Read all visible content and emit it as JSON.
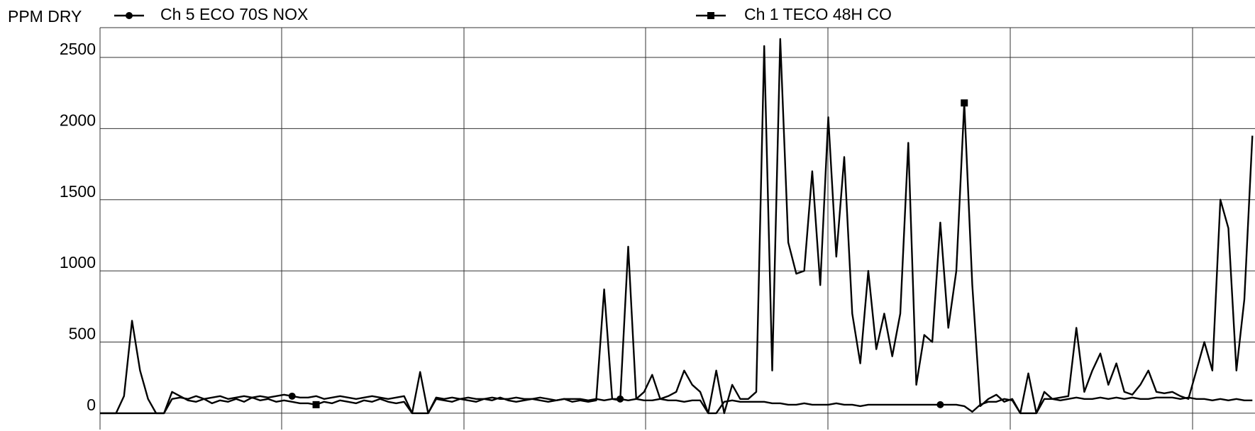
{
  "chart_data": {
    "type": "line",
    "ylabel": "PPM DRY",
    "ylim": [
      -115,
      2709
    ],
    "yticks": [
      0,
      500,
      1000,
      1500,
      2000,
      2500
    ],
    "grid": true,
    "series": [
      {
        "name": "Ch 5 ECO 70S NOX",
        "color": "#000000",
        "marker": "circle",
        "values": [
          0,
          0,
          0,
          0,
          0,
          0,
          0,
          0,
          0,
          100,
          110,
          100,
          120,
          100,
          110,
          120,
          100,
          110,
          120,
          110,
          120,
          110,
          120,
          130,
          120,
          110,
          110,
          120,
          100,
          110,
          120,
          110,
          100,
          110,
          120,
          110,
          100,
          110,
          120,
          0,
          0,
          0,
          110,
          100,
          110,
          100,
          110,
          100,
          100,
          110,
          100,
          100,
          110,
          100,
          100,
          110,
          100,
          90,
          100,
          100,
          100,
          90,
          100,
          90,
          100,
          100,
          90,
          100,
          90,
          90,
          100,
          90,
          90,
          80,
          90,
          90,
          0,
          0,
          80,
          90,
          80,
          80,
          80,
          80,
          70,
          70,
          60,
          60,
          70,
          60,
          60,
          60,
          70,
          60,
          60,
          50,
          60,
          60,
          60,
          60,
          60,
          60,
          60,
          60,
          60,
          60,
          60,
          60,
          50,
          10,
          60,
          80,
          80,
          100,
          90,
          0,
          0,
          0,
          100,
          100,
          90,
          100,
          110,
          100,
          100,
          110,
          100,
          110,
          100,
          110,
          100,
          100,
          110,
          110,
          110,
          100,
          110,
          100,
          100,
          90,
          100,
          90,
          100,
          90,
          90
        ]
      },
      {
        "name": "Ch 1 TECO 48H CO",
        "color": "#000000",
        "marker": "square",
        "values": [
          0,
          0,
          0,
          120,
          650,
          300,
          100,
          0,
          0,
          150,
          120,
          90,
          80,
          100,
          70,
          90,
          80,
          100,
          80,
          110,
          90,
          100,
          80,
          90,
          80,
          70,
          70,
          60,
          80,
          70,
          90,
          80,
          70,
          90,
          80,
          100,
          80,
          70,
          80,
          0,
          290,
          0,
          100,
          90,
          80,
          100,
          90,
          80,
          100,
          90,
          110,
          90,
          80,
          90,
          100,
          90,
          80,
          90,
          100,
          80,
          90,
          80,
          90,
          870,
          100,
          90,
          1170,
          100,
          150,
          270,
          100,
          120,
          150,
          300,
          200,
          150,
          0,
          300,
          0,
          200,
          100,
          100,
          150,
          2580,
          300,
          2630,
          1200,
          980,
          1000,
          1700,
          900,
          2080,
          1100,
          1800,
          700,
          350,
          1000,
          450,
          700,
          400,
          700,
          1900,
          200,
          550,
          500,
          1340,
          600,
          1000,
          2180,
          900,
          50,
          100,
          130,
          80,
          100,
          0,
          280,
          0,
          150,
          100,
          110,
          120,
          600,
          150,
          300,
          420,
          200,
          350,
          150,
          130,
          200,
          300,
          150,
          140,
          150,
          120,
          100,
          300,
          500,
          300,
          1500,
          1300,
          300,
          800,
          1950
        ]
      }
    ]
  }
}
